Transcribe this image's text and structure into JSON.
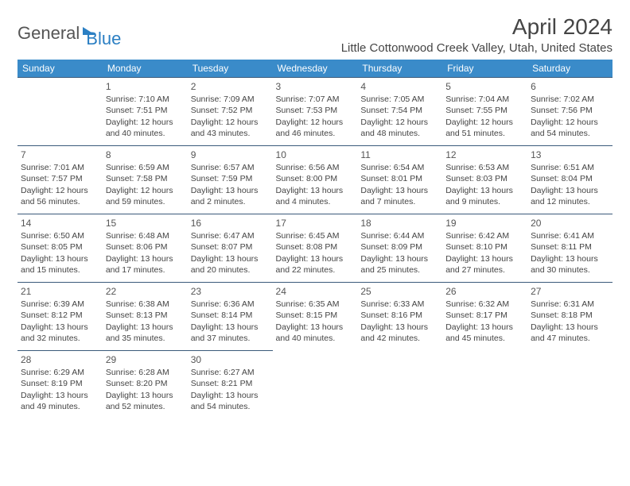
{
  "brand": {
    "part1": "General",
    "part2": "Blue"
  },
  "title": "April 2024",
  "location": "Little Cottonwood Creek Valley, Utah, United States",
  "header_bg": "#3a8bc9",
  "border_color": "#3a5a7a",
  "daynames": [
    "Sunday",
    "Monday",
    "Tuesday",
    "Wednesday",
    "Thursday",
    "Friday",
    "Saturday"
  ],
  "weeks": [
    [
      null,
      {
        "n": "1",
        "sr": "7:10 AM",
        "ss": "7:51 PM",
        "dl": "12 hours and 40 minutes."
      },
      {
        "n": "2",
        "sr": "7:09 AM",
        "ss": "7:52 PM",
        "dl": "12 hours and 43 minutes."
      },
      {
        "n": "3",
        "sr": "7:07 AM",
        "ss": "7:53 PM",
        "dl": "12 hours and 46 minutes."
      },
      {
        "n": "4",
        "sr": "7:05 AM",
        "ss": "7:54 PM",
        "dl": "12 hours and 48 minutes."
      },
      {
        "n": "5",
        "sr": "7:04 AM",
        "ss": "7:55 PM",
        "dl": "12 hours and 51 minutes."
      },
      {
        "n": "6",
        "sr": "7:02 AM",
        "ss": "7:56 PM",
        "dl": "12 hours and 54 minutes."
      }
    ],
    [
      {
        "n": "7",
        "sr": "7:01 AM",
        "ss": "7:57 PM",
        "dl": "12 hours and 56 minutes."
      },
      {
        "n": "8",
        "sr": "6:59 AM",
        "ss": "7:58 PM",
        "dl": "12 hours and 59 minutes."
      },
      {
        "n": "9",
        "sr": "6:57 AM",
        "ss": "7:59 PM",
        "dl": "13 hours and 2 minutes."
      },
      {
        "n": "10",
        "sr": "6:56 AM",
        "ss": "8:00 PM",
        "dl": "13 hours and 4 minutes."
      },
      {
        "n": "11",
        "sr": "6:54 AM",
        "ss": "8:01 PM",
        "dl": "13 hours and 7 minutes."
      },
      {
        "n": "12",
        "sr": "6:53 AM",
        "ss": "8:03 PM",
        "dl": "13 hours and 9 minutes."
      },
      {
        "n": "13",
        "sr": "6:51 AM",
        "ss": "8:04 PM",
        "dl": "13 hours and 12 minutes."
      }
    ],
    [
      {
        "n": "14",
        "sr": "6:50 AM",
        "ss": "8:05 PM",
        "dl": "13 hours and 15 minutes."
      },
      {
        "n": "15",
        "sr": "6:48 AM",
        "ss": "8:06 PM",
        "dl": "13 hours and 17 minutes."
      },
      {
        "n": "16",
        "sr": "6:47 AM",
        "ss": "8:07 PM",
        "dl": "13 hours and 20 minutes."
      },
      {
        "n": "17",
        "sr": "6:45 AM",
        "ss": "8:08 PM",
        "dl": "13 hours and 22 minutes."
      },
      {
        "n": "18",
        "sr": "6:44 AM",
        "ss": "8:09 PM",
        "dl": "13 hours and 25 minutes."
      },
      {
        "n": "19",
        "sr": "6:42 AM",
        "ss": "8:10 PM",
        "dl": "13 hours and 27 minutes."
      },
      {
        "n": "20",
        "sr": "6:41 AM",
        "ss": "8:11 PM",
        "dl": "13 hours and 30 minutes."
      }
    ],
    [
      {
        "n": "21",
        "sr": "6:39 AM",
        "ss": "8:12 PM",
        "dl": "13 hours and 32 minutes."
      },
      {
        "n": "22",
        "sr": "6:38 AM",
        "ss": "8:13 PM",
        "dl": "13 hours and 35 minutes."
      },
      {
        "n": "23",
        "sr": "6:36 AM",
        "ss": "8:14 PM",
        "dl": "13 hours and 37 minutes."
      },
      {
        "n": "24",
        "sr": "6:35 AM",
        "ss": "8:15 PM",
        "dl": "13 hours and 40 minutes."
      },
      {
        "n": "25",
        "sr": "6:33 AM",
        "ss": "8:16 PM",
        "dl": "13 hours and 42 minutes."
      },
      {
        "n": "26",
        "sr": "6:32 AM",
        "ss": "8:17 PM",
        "dl": "13 hours and 45 minutes."
      },
      {
        "n": "27",
        "sr": "6:31 AM",
        "ss": "8:18 PM",
        "dl": "13 hours and 47 minutes."
      }
    ],
    [
      {
        "n": "28",
        "sr": "6:29 AM",
        "ss": "8:19 PM",
        "dl": "13 hours and 49 minutes."
      },
      {
        "n": "29",
        "sr": "6:28 AM",
        "ss": "8:20 PM",
        "dl": "13 hours and 52 minutes."
      },
      {
        "n": "30",
        "sr": "6:27 AM",
        "ss": "8:21 PM",
        "dl": "13 hours and 54 minutes."
      },
      null,
      null,
      null,
      null
    ]
  ],
  "labels": {
    "sunrise": "Sunrise:",
    "sunset": "Sunset:",
    "daylight": "Daylight:"
  }
}
